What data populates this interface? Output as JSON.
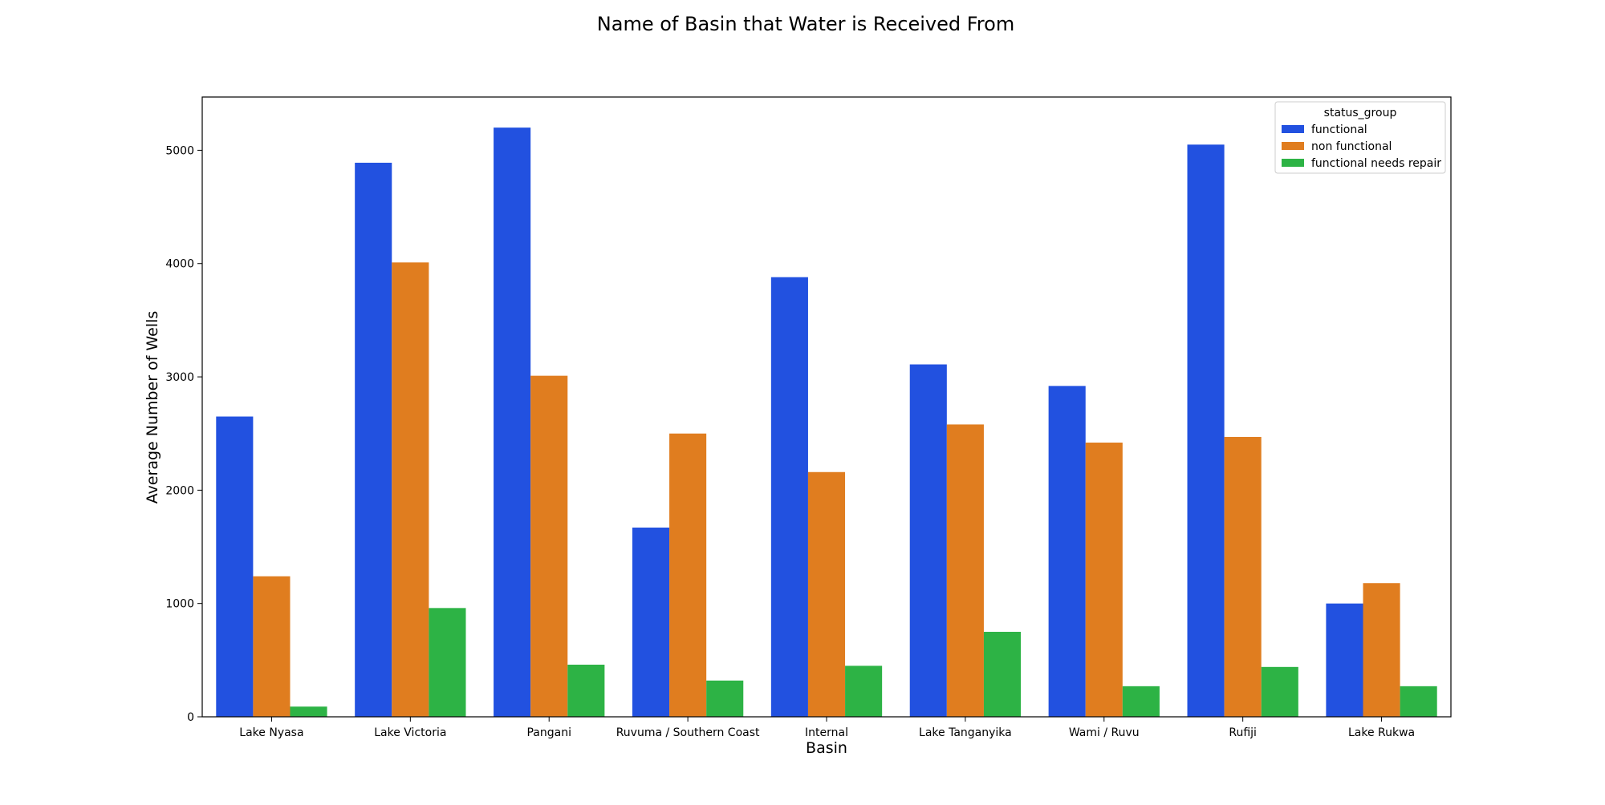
{
  "chart_data": {
    "type": "bar",
    "title": "Name of Basin that Water is Received From",
    "xlabel": "Basin",
    "ylabel": "Average Number of Wells",
    "categories": [
      "Lake Nyasa",
      "Lake Victoria",
      "Pangani",
      "Ruvuma / Southern Coast",
      "Internal",
      "Lake Tanganyika",
      "Wami / Ruvu",
      "Rufiji",
      "Lake Rukwa"
    ],
    "series": [
      {
        "name": "functional",
        "color": "#2251e0",
        "values": [
          2650,
          4890,
          5200,
          1670,
          3880,
          3110,
          2920,
          5050,
          1000
        ]
      },
      {
        "name": "non functional",
        "color": "#e07d1f",
        "values": [
          1240,
          4010,
          3010,
          2500,
          2160,
          2580,
          2420,
          2470,
          1180
        ]
      },
      {
        "name": "functional needs repair",
        "color": "#2db345",
        "values": [
          90,
          960,
          460,
          320,
          450,
          750,
          270,
          440,
          270
        ]
      }
    ],
    "ylim": [
      0,
      5470
    ],
    "yticks": [
      0,
      1000,
      2000,
      3000,
      4000,
      5000
    ],
    "grid": false,
    "legend": {
      "title": "status_group",
      "position": "top-right"
    }
  }
}
